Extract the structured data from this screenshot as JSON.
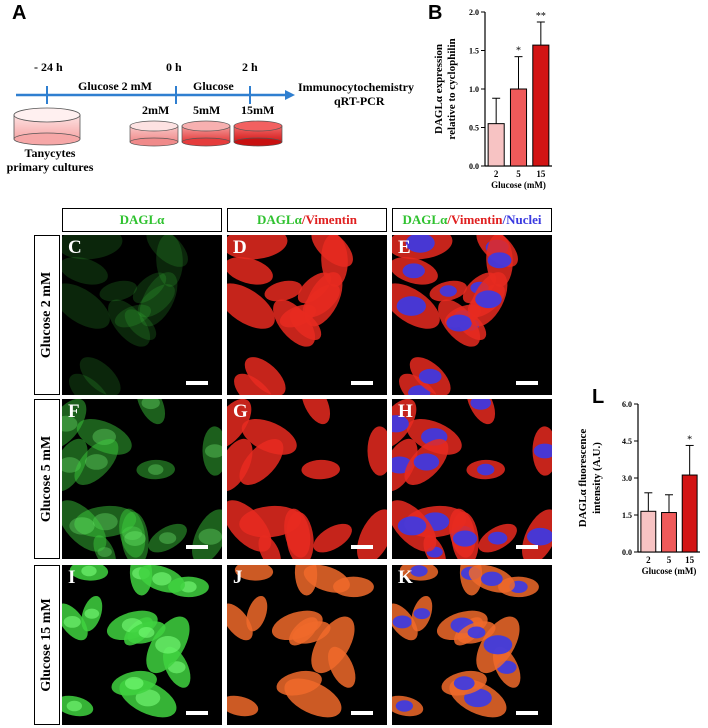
{
  "panels": {
    "A": "A",
    "B": "B",
    "L": "L"
  },
  "timeline": {
    "t1": "- 24 h",
    "t2": "0 h",
    "t3": "2 h",
    "step1": "Glucose 2 mM",
    "step2": "Glucose",
    "output_line1": "Immunocytochemistry",
    "output_line2": "qRT-PCR",
    "dishes": [
      "2mM",
      "5mM",
      "15mM"
    ],
    "culture_line1": "Tanycytes",
    "culture_line2": "primary cultures"
  },
  "colors": {
    "axis": "#000000",
    "timeline": "#2f7fd0",
    "bar_light": "#f7c3c3",
    "bar_mid": "#ef5a5a",
    "bar_dark": "#d21414"
  },
  "chart_data": [
    {
      "id": "B",
      "type": "bar",
      "categories": [
        "2",
        "5",
        "15"
      ],
      "values": [
        0.55,
        1.0,
        1.57
      ],
      "errors": [
        0.33,
        0.42,
        0.3
      ],
      "significance": [
        "",
        "*",
        "**"
      ],
      "ylabel_line1": "DAGLα expression",
      "ylabel_line2": "relative to cyclophilin",
      "xlabel": "Glucose (mM)",
      "ylim": [
        0,
        2.0
      ],
      "yticks": [
        "0.0",
        "0.5",
        "1.0",
        "1.5",
        "2.0"
      ],
      "ytick_values": [
        0,
        0.5,
        1.0,
        1.5,
        2.0
      ]
    },
    {
      "id": "L",
      "type": "bar",
      "categories": [
        "2",
        "5",
        "15"
      ],
      "values": [
        1.65,
        1.6,
        3.12
      ],
      "errors": [
        0.75,
        0.72,
        1.2
      ],
      "significance": [
        "",
        "",
        "*"
      ],
      "ylabel_line1": "DAGLα fluorescence",
      "ylabel_line2": "intensity (A.U.)",
      "xlabel": "Glucose (mM)",
      "ylim": [
        0,
        6.0
      ],
      "yticks": [
        "0.0",
        "1.5",
        "3.0",
        "4.5",
        "6.0"
      ],
      "ytick_values": [
        0,
        1.5,
        3.0,
        4.5,
        6.0
      ]
    }
  ],
  "grid": {
    "columns": [
      {
        "parts": [
          {
            "text": "DAGLα",
            "color": "g"
          }
        ]
      },
      {
        "parts": [
          {
            "text": "DAGLα",
            "color": "g"
          },
          {
            "text": "/Vimentin",
            "color": "r"
          }
        ]
      },
      {
        "parts": [
          {
            "text": "DAGLα",
            "color": "g"
          },
          {
            "text": "/Vimentin",
            "color": "r"
          },
          {
            "text": "/Nuclei",
            "color": "b"
          }
        ]
      }
    ],
    "rows": [
      "Glucose 2 mM",
      "Glucose 5 mM",
      "Glucose 15 mM"
    ],
    "letters": [
      "C",
      "D",
      "E",
      "F",
      "G",
      "H",
      "I",
      "J",
      "K"
    ]
  }
}
